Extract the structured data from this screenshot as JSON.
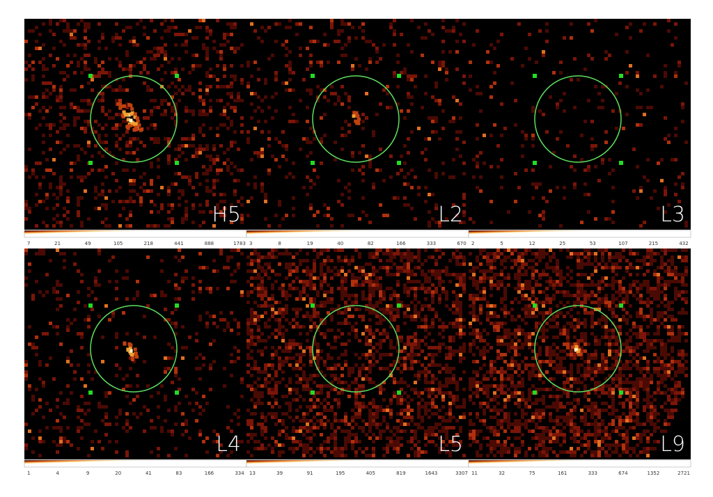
{
  "panels": [
    {
      "label": "H5",
      "colorbar_ticks": [
        7,
        21,
        49,
        105,
        218,
        441,
        888,
        1783
      ]
    },
    {
      "label": "L2",
      "colorbar_ticks": [
        3,
        8,
        19,
        40,
        82,
        166,
        333,
        670
      ]
    },
    {
      "label": "L3",
      "colorbar_ticks": [
        2,
        5,
        12,
        25,
        53,
        107,
        215,
        432
      ]
    },
    {
      "label": "L4",
      "colorbar_ticks": [
        1,
        4,
        9,
        20,
        41,
        83,
        166,
        334
      ]
    },
    {
      "label": "L5",
      "colorbar_ticks": [
        13,
        39,
        91,
        195,
        405,
        819,
        1643,
        3307
      ]
    },
    {
      "label": "L9",
      "colorbar_ticks": [
        11,
        32,
        75,
        161,
        333,
        674,
        1352,
        2721
      ]
    }
  ]
}
